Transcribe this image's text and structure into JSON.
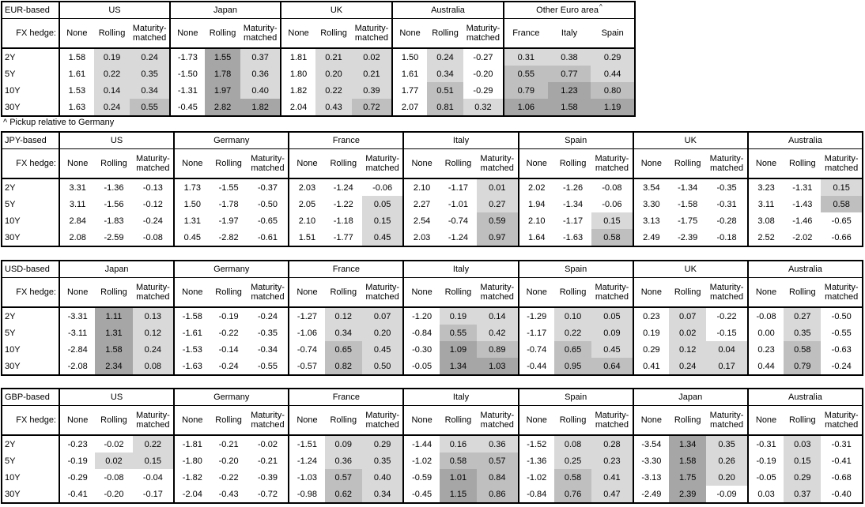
{
  "style": {
    "border_color": "#000000",
    "shade_light": "#d9d9d9",
    "shade_medium": "#bfbfbf",
    "shade_dark": "#a6a6a6",
    "shade_thresholds": {
      "light_above": 0,
      "medium_above": 0.5,
      "dark_above": 1.0
    }
  },
  "labels": {
    "fx_hedge": "FX hedge:",
    "footnote": "^ Pickup relative to Germany"
  },
  "chart_data": [
    {
      "type": "table",
      "base": "EUR-based",
      "row_labels": [
        "2Y",
        "5Y",
        "10Y",
        "30Y"
      ],
      "hedge_columns": [
        "None",
        "Rolling",
        "Maturity-matched"
      ],
      "groups": [
        {
          "name": "US",
          "kind": "hedge",
          "values": [
            [
              "1.58",
              "0.19",
              "0.24"
            ],
            [
              "1.61",
              "0.22",
              "0.35"
            ],
            [
              "1.53",
              "0.14",
              "0.34"
            ],
            [
              "1.63",
              "0.24",
              "0.55"
            ]
          ]
        },
        {
          "name": "Japan",
          "kind": "hedge",
          "values": [
            [
              "-1.73",
              "1.55",
              "0.37"
            ],
            [
              "-1.50",
              "1.78",
              "0.36"
            ],
            [
              "-1.31",
              "1.97",
              "0.40"
            ],
            [
              "-0.45",
              "2.82",
              "1.82"
            ]
          ]
        },
        {
          "name": "UK",
          "kind": "hedge",
          "values": [
            [
              "1.81",
              "0.21",
              "0.02"
            ],
            [
              "1.80",
              "0.20",
              "0.21"
            ],
            [
              "1.82",
              "0.22",
              "0.39"
            ],
            [
              "2.04",
              "0.43",
              "0.72"
            ]
          ]
        },
        {
          "name": "Australia",
          "kind": "hedge",
          "values": [
            [
              "1.50",
              "0.24",
              "-0.27"
            ],
            [
              "1.61",
              "0.34",
              "-0.20"
            ],
            [
              "1.77",
              "0.51",
              "-0.29"
            ],
            [
              "2.07",
              "0.81",
              "0.32"
            ]
          ]
        },
        {
          "name": "Other Euro area",
          "marker": "^",
          "kind": "countries",
          "columns": [
            "France",
            "Italy",
            "Spain"
          ],
          "values": [
            [
              "0.31",
              "0.38",
              "0.29"
            ],
            [
              "0.55",
              "0.77",
              "0.44"
            ],
            [
              "0.79",
              "1.23",
              "0.80"
            ],
            [
              "1.06",
              "1.58",
              "1.19"
            ]
          ]
        }
      ]
    },
    {
      "type": "table",
      "base": "JPY-based",
      "row_labels": [
        "2Y",
        "5Y",
        "10Y",
        "30Y"
      ],
      "hedge_columns": [
        "None",
        "Rolling",
        "Maturity-matched"
      ],
      "groups": [
        {
          "name": "US",
          "kind": "hedge",
          "values": [
            [
              "3.31",
              "-1.36",
              "-0.13"
            ],
            [
              "3.11",
              "-1.56",
              "-0.12"
            ],
            [
              "2.84",
              "-1.83",
              "-0.24"
            ],
            [
              "2.08",
              "-2.59",
              "-0.08"
            ]
          ]
        },
        {
          "name": "Germany",
          "kind": "hedge",
          "values": [
            [
              "1.73",
              "-1.55",
              "-0.37"
            ],
            [
              "1.50",
              "-1.78",
              "-0.50"
            ],
            [
              "1.31",
              "-1.97",
              "-0.65"
            ],
            [
              "0.45",
              "-2.82",
              "-0.61"
            ]
          ]
        },
        {
          "name": "France",
          "kind": "hedge",
          "values": [
            [
              "2.03",
              "-1.24",
              "-0.06"
            ],
            [
              "2.05",
              "-1.22",
              "0.05"
            ],
            [
              "2.10",
              "-1.18",
              "0.15"
            ],
            [
              "1.51",
              "-1.77",
              "0.45"
            ]
          ]
        },
        {
          "name": "Italy",
          "kind": "hedge",
          "values": [
            [
              "2.10",
              "-1.17",
              "0.01"
            ],
            [
              "2.27",
              "-1.01",
              "0.27"
            ],
            [
              "2.54",
              "-0.74",
              "0.59"
            ],
            [
              "2.03",
              "-1.24",
              "0.97"
            ]
          ]
        },
        {
          "name": "Spain",
          "kind": "hedge",
          "values": [
            [
              "2.02",
              "-1.26",
              "-0.08"
            ],
            [
              "1.94",
              "-1.34",
              "-0.06"
            ],
            [
              "2.10",
              "-1.17",
              "0.15"
            ],
            [
              "1.64",
              "-1.63",
              "0.58"
            ]
          ]
        },
        {
          "name": "UK",
          "kind": "hedge",
          "values": [
            [
              "3.54",
              "-1.34",
              "-0.35"
            ],
            [
              "3.30",
              "-1.58",
              "-0.31"
            ],
            [
              "3.13",
              "-1.75",
              "-0.28"
            ],
            [
              "2.49",
              "-2.39",
              "-0.18"
            ]
          ]
        },
        {
          "name": "Australia",
          "kind": "hedge",
          "values": [
            [
              "3.23",
              "-1.31",
              "0.15"
            ],
            [
              "3.11",
              "-1.43",
              "0.58"
            ],
            [
              "3.08",
              "-1.46",
              "-0.65"
            ],
            [
              "2.52",
              "-2.02",
              "-0.66"
            ]
          ]
        }
      ]
    },
    {
      "type": "table",
      "base": "USD-based",
      "row_labels": [
        "2Y",
        "5Y",
        "10Y",
        "30Y"
      ],
      "hedge_columns": [
        "None",
        "Rolling",
        "Maturity-matched"
      ],
      "groups": [
        {
          "name": "Japan",
          "kind": "hedge",
          "values": [
            [
              "-3.31",
              "1.11",
              "0.13"
            ],
            [
              "-3.11",
              "1.31",
              "0.12"
            ],
            [
              "-2.84",
              "1.58",
              "0.24"
            ],
            [
              "-2.08",
              "2.34",
              "0.08"
            ]
          ]
        },
        {
          "name": "Germany",
          "kind": "hedge",
          "values": [
            [
              "-1.58",
              "-0.19",
              "-0.24"
            ],
            [
              "-1.61",
              "-0.22",
              "-0.35"
            ],
            [
              "-1.53",
              "-0.14",
              "-0.34"
            ],
            [
              "-1.63",
              "-0.24",
              "-0.55"
            ]
          ]
        },
        {
          "name": "France",
          "kind": "hedge",
          "values": [
            [
              "-1.27",
              "0.12",
              "0.07"
            ],
            [
              "-1.06",
              "0.34",
              "0.20"
            ],
            [
              "-0.74",
              "0.65",
              "0.45"
            ],
            [
              "-0.57",
              "0.82",
              "0.50"
            ]
          ]
        },
        {
          "name": "Italy",
          "kind": "hedge",
          "values": [
            [
              "-1.20",
              "0.19",
              "0.14"
            ],
            [
              "-0.84",
              "0.55",
              "0.42"
            ],
            [
              "-0.30",
              "1.09",
              "0.89"
            ],
            [
              "-0.05",
              "1.34",
              "1.03"
            ]
          ]
        },
        {
          "name": "Spain",
          "kind": "hedge",
          "values": [
            [
              "-1.29",
              "0.10",
              "0.05"
            ],
            [
              "-1.17",
              "0.22",
              "0.09"
            ],
            [
              "-0.74",
              "0.65",
              "0.45"
            ],
            [
              "-0.44",
              "0.95",
              "0.64"
            ]
          ]
        },
        {
          "name": "UK",
          "kind": "hedge",
          "values": [
            [
              "0.23",
              "0.07",
              "-0.22"
            ],
            [
              "0.19",
              "0.02",
              "-0.15"
            ],
            [
              "0.29",
              "0.12",
              "0.04"
            ],
            [
              "0.41",
              "0.24",
              "0.17"
            ]
          ]
        },
        {
          "name": "Australia",
          "kind": "hedge",
          "values": [
            [
              "-0.08",
              "0.27",
              "-0.50"
            ],
            [
              "0.00",
              "0.35",
              "-0.55"
            ],
            [
              "0.23",
              "0.58",
              "-0.63"
            ],
            [
              "0.44",
              "0.79",
              "-0.24"
            ]
          ]
        }
      ]
    },
    {
      "type": "table",
      "base": "GBP-based",
      "row_labels": [
        "2Y",
        "5Y",
        "10Y",
        "30Y"
      ],
      "hedge_columns": [
        "None",
        "Rolling",
        "Maturity-matched"
      ],
      "groups": [
        {
          "name": "US",
          "kind": "hedge",
          "values": [
            [
              "-0.23",
              "-0.02",
              "0.22"
            ],
            [
              "-0.19",
              "0.02",
              "0.15"
            ],
            [
              "-0.29",
              "-0.08",
              "-0.04"
            ],
            [
              "-0.41",
              "-0.20",
              "-0.17"
            ]
          ]
        },
        {
          "name": "Germany",
          "kind": "hedge",
          "values": [
            [
              "-1.81",
              "-0.21",
              "-0.02"
            ],
            [
              "-1.80",
              "-0.20",
              "-0.21"
            ],
            [
              "-1.82",
              "-0.22",
              "-0.39"
            ],
            [
              "-2.04",
              "-0.43",
              "-0.72"
            ]
          ]
        },
        {
          "name": "France",
          "kind": "hedge",
          "values": [
            [
              "-1.51",
              "0.09",
              "0.29"
            ],
            [
              "-1.24",
              "0.36",
              "0.35"
            ],
            [
              "-1.03",
              "0.57",
              "0.40"
            ],
            [
              "-0.98",
              "0.62",
              "0.34"
            ]
          ]
        },
        {
          "name": "Italy",
          "kind": "hedge",
          "values": [
            [
              "-1.44",
              "0.16",
              "0.36"
            ],
            [
              "-1.02",
              "0.58",
              "0.57"
            ],
            [
              "-0.59",
              "1.01",
              "0.84"
            ],
            [
              "-0.45",
              "1.15",
              "0.86"
            ]
          ]
        },
        {
          "name": "Spain",
          "kind": "hedge",
          "values": [
            [
              "-1.52",
              "0.08",
              "0.28"
            ],
            [
              "-1.36",
              "0.25",
              "0.23"
            ],
            [
              "-1.02",
              "0.58",
              "0.41"
            ],
            [
              "-0.84",
              "0.76",
              "0.47"
            ]
          ]
        },
        {
          "name": "Japan",
          "kind": "hedge",
          "values": [
            [
              "-3.54",
              "1.34",
              "0.35"
            ],
            [
              "-3.30",
              "1.58",
              "0.26"
            ],
            [
              "-3.13",
              "1.75",
              "0.20"
            ],
            [
              "-2.49",
              "2.39",
              "-0.09"
            ]
          ]
        },
        {
          "name": "Australia",
          "kind": "hedge",
          "values": [
            [
              "-0.31",
              "0.03",
              "-0.31"
            ],
            [
              "-0.19",
              "0.15",
              "-0.41"
            ],
            [
              "-0.05",
              "0.29",
              "-0.68"
            ],
            [
              "0.03",
              "0.37",
              "-0.40"
            ]
          ]
        }
      ]
    }
  ]
}
